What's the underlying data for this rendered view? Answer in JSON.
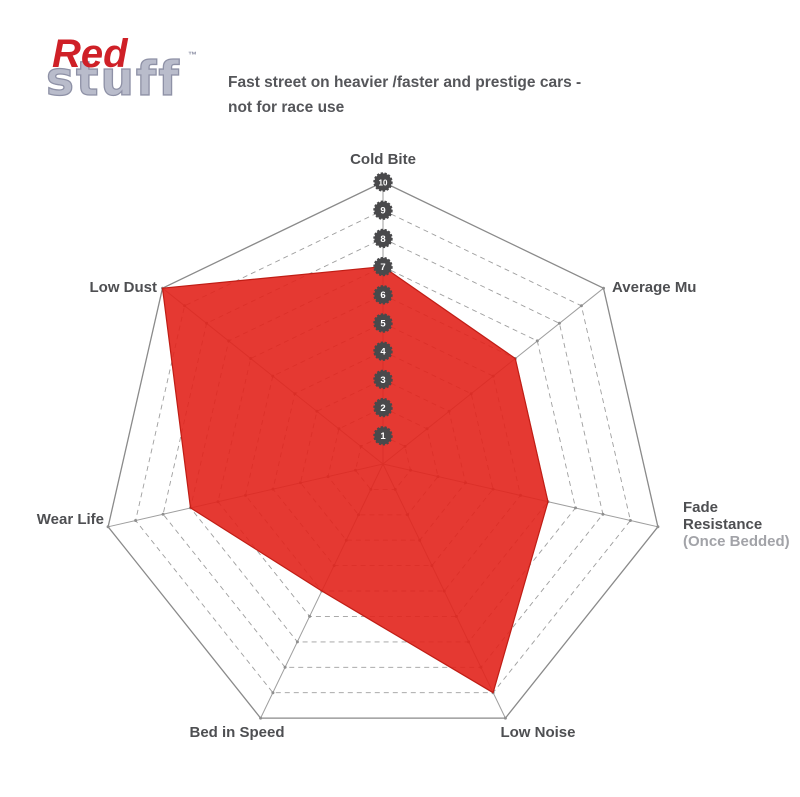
{
  "logo": {
    "brand_top": "Red",
    "brand_bottom": "stuff",
    "trademark": "™"
  },
  "tagline": {
    "line1": "Fast street on heavier /faster and prestige cars -",
    "line2": "not for race use"
  },
  "chart_data": {
    "type": "radar",
    "title": "EBC Redstuff brake pad performance",
    "categories": [
      "Cold Bite",
      "Average Mu",
      "Fade Resistance (Once Bedded)",
      "Low Noise",
      "Bed in Speed",
      "Wear Life",
      "Low Dust"
    ],
    "values": [
      7,
      6,
      6,
      9,
      5,
      7,
      10
    ],
    "axis_label_lines": [
      [
        "Cold Bite"
      ],
      [
        "Average Mu"
      ],
      [
        "Fade",
        "Resistance",
        "(Once Bedded)"
      ],
      [
        "Low Noise"
      ],
      [
        "Bed in Speed"
      ],
      [
        "Wear Life"
      ],
      [
        "Low Dust"
      ]
    ],
    "axis_min": 0,
    "axis_max": 10,
    "scale_ticks": [
      1,
      2,
      3,
      4,
      5,
      6,
      7,
      8,
      9,
      10
    ],
    "num_axes": 7,
    "grid": "dashed-rings-with-solid-outer",
    "legend": "none",
    "colors": {
      "series_fill": "#e2241c",
      "series_edge": "#c01d15",
      "grid": "#9e9e9e",
      "outer_ring": "#8a8a8a",
      "tick_dot": "#8f8f8f",
      "axis_label": "#4e4f52",
      "muted_label": "#a2a3a8",
      "tick_badge": "#49494b",
      "tick_text": "#ffffff",
      "brand_red": "#cf2027",
      "brand_gray": "#b9bccb"
    }
  }
}
